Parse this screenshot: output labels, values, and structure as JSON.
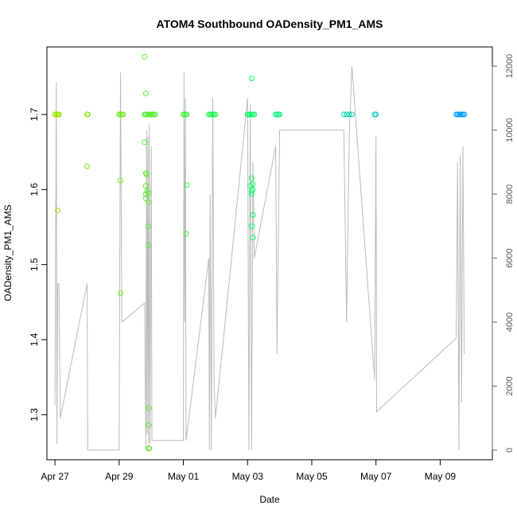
{
  "chart_data": {
    "type": "scatter",
    "title": "ATOM4 Southbound OADensity_PM1_AMS",
    "xlabel": "Date",
    "ylabel": "OADensity_PM1_AMS",
    "xlim": [
      "2023-04-26 18:00",
      "2023-05-10 15:00"
    ],
    "ylim": [
      1.24,
      1.79
    ],
    "y_ticks": [
      1.3,
      1.4,
      1.5,
      1.6,
      1.7
    ],
    "x_ticks": [
      {
        "date": "2023-04-27",
        "label": "Apr 27"
      },
      {
        "date": "2023-04-29",
        "label": "Apr 29"
      },
      {
        "date": "2023-05-01",
        "label": "May 01"
      },
      {
        "date": "2023-05-03",
        "label": "May 03"
      },
      {
        "date": "2023-05-05",
        "label": "May 05"
      },
      {
        "date": "2023-05-07",
        "label": "May 07"
      },
      {
        "date": "2023-05-09",
        "label": "May 09"
      }
    ],
    "y2lim": [
      -300,
      12600
    ],
    "y2_ticks": [
      0,
      2000,
      4000,
      6000,
      8000,
      10000,
      12000
    ],
    "grid": false,
    "series": [
      {
        "marker": "open-circle",
        "color_note": "color gradient from yellow-green (earliest) to blue (latest)",
        "colors": {
          "start": "#9ee000",
          "middle": "#00ff66",
          "end": "#0099ff"
        },
        "points": [
          {
            "x": "2023-04-27 00:00",
            "y": 1.7
          },
          {
            "x": "2023-04-27 01:00",
            "y": 1.7
          },
          {
            "x": "2023-04-27 02:00",
            "y": 1.7
          },
          {
            "x": "2023-04-27 02:30",
            "y": 1.7
          },
          {
            "x": "2023-04-27 03:00",
            "y": 1.7
          },
          {
            "x": "2023-04-27 02:00",
            "y": 1.572
          },
          {
            "x": "2023-04-28 00:00",
            "y": 1.7
          },
          {
            "x": "2023-04-28 00:30",
            "y": 1.7
          },
          {
            "x": "2023-04-28 00:00",
            "y": 1.631
          },
          {
            "x": "2023-04-29 00:00",
            "y": 1.7
          },
          {
            "x": "2023-04-29 01:00",
            "y": 1.7
          },
          {
            "x": "2023-04-29 02:00",
            "y": 1.7
          },
          {
            "x": "2023-04-29 03:00",
            "y": 1.7
          },
          {
            "x": "2023-04-29 01:00",
            "y": 1.612
          },
          {
            "x": "2023-04-29 01:00",
            "y": 1.462
          },
          {
            "x": "2023-04-29 19:00",
            "y": 1.7
          },
          {
            "x": "2023-04-29 20:00",
            "y": 1.7
          },
          {
            "x": "2023-04-29 21:00",
            "y": 1.7
          },
          {
            "x": "2023-04-29 22:00",
            "y": 1.7
          },
          {
            "x": "2023-04-29 23:00",
            "y": 1.7
          },
          {
            "x": "2023-04-30 00:00",
            "y": 1.7
          },
          {
            "x": "2023-04-30 01:00",
            "y": 1.7
          },
          {
            "x": "2023-04-30 02:00",
            "y": 1.7
          },
          {
            "x": "2023-04-30 03:00",
            "y": 1.7
          },
          {
            "x": "2023-04-29 19:00",
            "y": 1.777
          },
          {
            "x": "2023-04-29 20:00",
            "y": 1.728
          },
          {
            "x": "2023-04-29 19:00",
            "y": 1.663
          },
          {
            "x": "2023-04-29 20:00",
            "y": 1.622
          },
          {
            "x": "2023-04-29 20:30",
            "y": 1.62
          },
          {
            "x": "2023-04-29 20:00",
            "y": 1.605
          },
          {
            "x": "2023-04-29 21:00",
            "y": 1.598
          },
          {
            "x": "2023-04-29 20:00",
            "y": 1.594
          },
          {
            "x": "2023-04-29 22:00",
            "y": 1.595
          },
          {
            "x": "2023-04-29 20:00",
            "y": 1.588
          },
          {
            "x": "2023-04-29 22:00",
            "y": 1.583
          },
          {
            "x": "2023-04-29 22:00",
            "y": 1.551
          },
          {
            "x": "2023-04-29 22:00",
            "y": 1.526
          },
          {
            "x": "2023-04-29 22:00",
            "y": 1.309
          },
          {
            "x": "2023-04-29 22:00",
            "y": 1.286
          },
          {
            "x": "2023-04-29 22:00",
            "y": 1.255
          },
          {
            "x": "2023-04-29 22:30",
            "y": 1.255
          },
          {
            "x": "2023-05-01 00:00",
            "y": 1.7
          },
          {
            "x": "2023-05-01 01:00",
            "y": 1.7
          },
          {
            "x": "2023-05-01 02:00",
            "y": 1.7
          },
          {
            "x": "2023-05-01 02:30",
            "y": 1.7
          },
          {
            "x": "2023-05-01 02:30",
            "y": 1.606
          },
          {
            "x": "2023-05-01 02:00",
            "y": 1.541
          },
          {
            "x": "2023-05-01 19:00",
            "y": 1.7
          },
          {
            "x": "2023-05-01 20:00",
            "y": 1.7
          },
          {
            "x": "2023-05-01 21:00",
            "y": 1.7
          },
          {
            "x": "2023-05-01 22:00",
            "y": 1.7
          },
          {
            "x": "2023-05-01 23:00",
            "y": 1.7
          },
          {
            "x": "2023-05-02 00:00",
            "y": 1.7
          },
          {
            "x": "2023-05-03 00:00",
            "y": 1.7
          },
          {
            "x": "2023-05-03 01:00",
            "y": 1.7
          },
          {
            "x": "2023-05-03 02:00",
            "y": 1.7
          },
          {
            "x": "2023-05-03 03:00",
            "y": 1.7
          },
          {
            "x": "2023-05-03 04:00",
            "y": 1.7
          },
          {
            "x": "2023-05-03 05:00",
            "y": 1.7
          },
          {
            "x": "2023-05-03 03:00",
            "y": 1.748
          },
          {
            "x": "2023-05-03 03:00",
            "y": 1.615
          },
          {
            "x": "2023-05-03 04:00",
            "y": 1.607
          },
          {
            "x": "2023-05-03 02:00",
            "y": 1.605
          },
          {
            "x": "2023-05-03 03:00",
            "y": 1.598
          },
          {
            "x": "2023-05-03 04:00",
            "y": 1.6
          },
          {
            "x": "2023-05-03 03:00",
            "y": 1.594
          },
          {
            "x": "2023-05-03 04:00",
            "y": 1.566
          },
          {
            "x": "2023-05-03 03:00",
            "y": 1.551
          },
          {
            "x": "2023-05-03 04:00",
            "y": 1.536
          },
          {
            "x": "2023-05-03 21:00",
            "y": 1.7
          },
          {
            "x": "2023-05-03 22:00",
            "y": 1.7
          },
          {
            "x": "2023-05-03 23:00",
            "y": 1.7
          },
          {
            "x": "2023-05-04 00:00",
            "y": 1.7
          },
          {
            "x": "2023-05-06 00:00",
            "y": 1.7
          },
          {
            "x": "2023-05-06 02:00",
            "y": 1.7
          },
          {
            "x": "2023-05-06 04:00",
            "y": 1.7
          },
          {
            "x": "2023-05-06 06:00",
            "y": 1.7
          },
          {
            "x": "2023-05-06 23:00",
            "y": 1.7
          },
          {
            "x": "2023-05-07 00:00",
            "y": 1.7
          },
          {
            "x": "2023-05-09 12:00",
            "y": 1.7
          },
          {
            "x": "2023-05-09 13:00",
            "y": 1.7
          },
          {
            "x": "2023-05-09 14:00",
            "y": 1.7
          },
          {
            "x": "2023-05-09 15:00",
            "y": 1.7
          },
          {
            "x": "2023-05-09 16:00",
            "y": 1.7
          },
          {
            "x": "2023-05-09 17:00",
            "y": 1.7
          },
          {
            "x": "2023-05-09 18:00",
            "y": 1.7
          }
        ]
      },
      {
        "marker": "line",
        "axis": "right",
        "color": "#bbbbbb",
        "points": [
          [
            "2023-04-27 00:00",
            1400
          ],
          [
            "2023-04-27 01:00",
            11500
          ],
          [
            "2023-04-27 01:30",
            200
          ],
          [
            "2023-04-27 02:00",
            5200
          ],
          [
            "2023-04-27 03:00",
            5200
          ],
          [
            "2023-04-27 04:00",
            1000
          ],
          [
            "2023-04-28 00:00",
            5200
          ],
          [
            "2023-04-28 00:30",
            0
          ],
          [
            "2023-04-29 00:00",
            0
          ],
          [
            "2023-04-29 01:00",
            11800
          ],
          [
            "2023-04-29 02:00",
            4000
          ],
          [
            "2023-04-29 19:00",
            4600
          ],
          [
            "2023-04-29 20:00",
            0
          ],
          [
            "2023-04-29 20:30",
            10000
          ],
          [
            "2023-04-29 21:00",
            500
          ],
          [
            "2023-04-29 21:30",
            9800
          ],
          [
            "2023-04-29 22:00",
            0
          ],
          [
            "2023-04-29 22:30",
            10200
          ],
          [
            "2023-04-29 23:00",
            200
          ],
          [
            "2023-04-30 00:00",
            9500
          ],
          [
            "2023-04-30 00:30",
            300
          ],
          [
            "2023-05-01 00:00",
            300
          ],
          [
            "2023-05-01 00:30",
            11800
          ],
          [
            "2023-05-01 01:00",
            4000
          ],
          [
            "2023-05-01 01:30",
            11000
          ],
          [
            "2023-05-01 02:00",
            300
          ],
          [
            "2023-05-01 19:00",
            6000
          ],
          [
            "2023-05-01 19:30",
            0
          ],
          [
            "2023-05-01 20:00",
            8000
          ],
          [
            "2023-05-01 21:00",
            0
          ],
          [
            "2023-05-01 22:00",
            11000
          ],
          [
            "2023-05-01 23:00",
            2000
          ],
          [
            "2023-05-02 00:00",
            1000
          ],
          [
            "2023-05-03 00:00",
            11000
          ],
          [
            "2023-05-03 01:00",
            0
          ],
          [
            "2023-05-03 02:00",
            10800
          ],
          [
            "2023-05-03 03:00",
            0
          ],
          [
            "2023-05-03 04:00",
            9000
          ],
          [
            "2023-05-03 05:00",
            6000
          ],
          [
            "2023-05-03 21:00",
            9500
          ],
          [
            "2023-05-03 22:00",
            3000
          ],
          [
            "2023-05-04 00:00",
            10000
          ],
          [
            "2023-05-06 00:00",
            10000
          ],
          [
            "2023-05-06 02:00",
            4000
          ],
          [
            "2023-05-06 04:00",
            9800
          ],
          [
            "2023-05-06 06:00",
            12000
          ],
          [
            "2023-05-06 23:00",
            2200
          ],
          [
            "2023-05-07 00:00",
            9800
          ],
          [
            "2023-05-07 00:30",
            1200
          ],
          [
            "2023-05-09 12:00",
            3500
          ],
          [
            "2023-05-09 13:00",
            9000
          ],
          [
            "2023-05-09 14:00",
            0
          ],
          [
            "2023-05-09 15:00",
            9200
          ],
          [
            "2023-05-09 16:00",
            1500
          ],
          [
            "2023-05-09 17:00",
            9500
          ],
          [
            "2023-05-09 18:00",
            3000
          ]
        ]
      }
    ]
  }
}
